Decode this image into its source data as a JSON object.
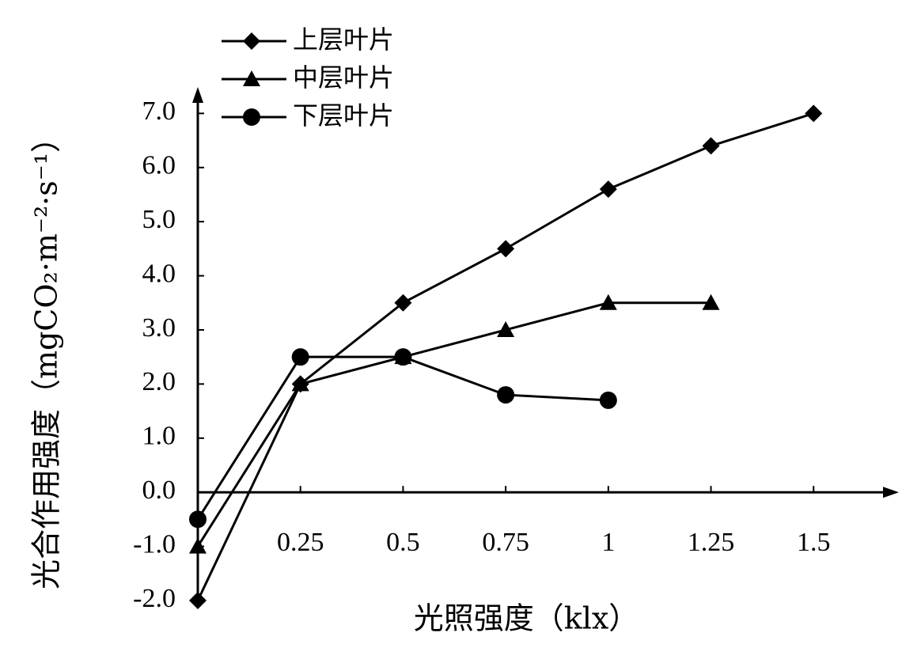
{
  "chart_data": {
    "type": "line",
    "ylabel": "光合作用强度（mgCO₂·m⁻²·s⁻¹）",
    "xlabel": "光照强度（klx）",
    "xlim": [
      0,
      1.7
    ],
    "ylim": [
      -2,
      7.4
    ],
    "xticks": [
      0.25,
      0.5,
      0.75,
      1,
      1.25,
      1.5
    ],
    "yticks": [
      {
        "value": -2,
        "label": "-2.0"
      },
      {
        "value": -1,
        "label": "-1.0"
      },
      {
        "value": 0,
        "label": "0.0"
      },
      {
        "value": 1,
        "label": "1.0"
      },
      {
        "value": 2,
        "label": "2.0"
      },
      {
        "value": 3,
        "label": "3.0"
      },
      {
        "value": 4,
        "label": "4.0"
      },
      {
        "value": 5,
        "label": "5.0"
      },
      {
        "value": 6,
        "label": "6.0"
      },
      {
        "value": 7,
        "label": "7.0"
      }
    ],
    "legend": "upper left",
    "series": [
      {
        "name": "上层叶片",
        "color": "#000000",
        "marker": "diamond",
        "x": [
          0,
          0.25,
          0.5,
          0.75,
          1,
          1.25,
          1.5
        ],
        "values": [
          -2.0,
          2.0,
          3.5,
          4.5,
          5.6,
          6.4,
          7.0
        ]
      },
      {
        "name": "中层叶片",
        "color": "#000000",
        "marker": "triangle",
        "x": [
          0,
          0.25,
          0.5,
          0.75,
          1,
          1.25
        ],
        "values": [
          -1.0,
          2.0,
          2.5,
          3.0,
          3.5,
          3.5
        ]
      },
      {
        "name": "下层叶片",
        "color": "#000000",
        "marker": "circle",
        "x": [
          0,
          0.25,
          0.5,
          0.75,
          1
        ],
        "values": [
          -0.5,
          2.5,
          2.5,
          1.8,
          1.7
        ]
      }
    ]
  }
}
